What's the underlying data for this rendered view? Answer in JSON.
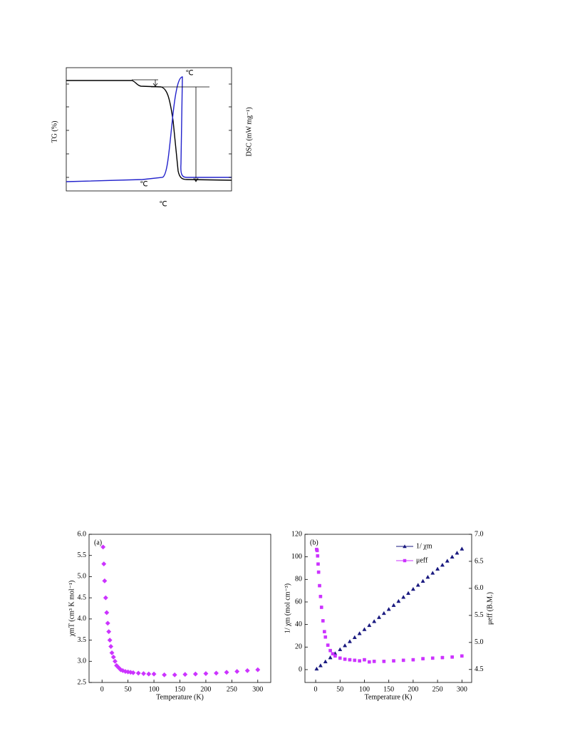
{
  "figure_top": {
    "y_label_left": "TG (%)",
    "y_label_right": "DSC (mW mg⁻¹)",
    "x_label": "℃",
    "peak_label": "℃",
    "onset_label": "℃"
  },
  "chart_data": [
    {
      "type": "scatter",
      "annotation": "(a)",
      "x_label": "Temperature (K)",
      "y_label": "χmT (cm³ K mol⁻¹)",
      "xlim": [
        -25,
        325
      ],
      "xticks": [
        0,
        50,
        100,
        150,
        200,
        250,
        300
      ],
      "ylim": [
        2.5,
        6.0
      ],
      "yticks": [
        2.5,
        {
          "value": 3,
          "label": "3.0"
        },
        3.5,
        {
          "value": 4,
          "label": "4.0"
        },
        4.5,
        {
          "value": 5,
          "label": "5.0"
        },
        5.5,
        {
          "value": 6,
          "label": "6.0"
        }
      ],
      "series": [
        {
          "marker": "diamond",
          "color": "#cc33ff",
          "x": [
            2,
            3.5,
            5,
            7,
            9,
            11,
            13,
            15,
            17,
            19,
            22,
            25,
            28,
            32,
            36,
            40,
            45,
            50,
            55,
            60,
            70,
            80,
            90,
            100,
            120,
            140,
            160,
            180,
            200,
            220,
            240,
            260,
            280,
            300
          ],
          "values": [
            5.7,
            5.3,
            4.9,
            4.5,
            4.15,
            3.9,
            3.7,
            3.5,
            3.35,
            3.2,
            3.1,
            3.0,
            2.9,
            2.85,
            2.8,
            2.78,
            2.76,
            2.75,
            2.74,
            2.73,
            2.72,
            2.71,
            2.7,
            2.7,
            2.68,
            2.68,
            2.69,
            2.7,
            2.71,
            2.72,
            2.74,
            2.76,
            2.78,
            2.8
          ]
        }
      ]
    },
    {
      "type": "scatter",
      "annotation": "(b)",
      "x_label": "Temperature (K)",
      "y_label": "1/ χm (mol cm⁻³)",
      "y2_label": "μeff (B.M.)",
      "xlim": [
        -22,
        320
      ],
      "xticks": [
        0,
        50,
        100,
        150,
        200,
        250,
        300
      ],
      "ylim": [
        -11.4,
        120
      ],
      "yticks": [
        0,
        20,
        40,
        60,
        80,
        100,
        120
      ],
      "y2lim": [
        4.26,
        7.0
      ],
      "y2ticks": [
        4.5,
        {
          "value": 5,
          "label": "5.0"
        },
        5.5,
        {
          "value": 6,
          "label": "6.0"
        },
        6.5,
        {
          "value": 7,
          "label": "7.0"
        }
      ],
      "series": [
        {
          "name": "1/ χm",
          "marker": "triangle",
          "color": "#1a1a80",
          "x": [
            2,
            10,
            20,
            30,
            40,
            50,
            60,
            70,
            80,
            90,
            100,
            110,
            120,
            130,
            140,
            150,
            160,
            170,
            180,
            190,
            200,
            210,
            220,
            230,
            240,
            250,
            260,
            270,
            280,
            290,
            300
          ],
          "values": [
            0.7,
            3.6,
            7.1,
            10.7,
            14.3,
            17.9,
            21.4,
            25.0,
            28.6,
            32.1,
            35.7,
            39.3,
            42.8,
            46.4,
            50.0,
            53.6,
            57.1,
            60.7,
            64.3,
            67.8,
            71.4,
            75.0,
            78.5,
            82.1,
            85.7,
            89.3,
            92.8,
            96.4,
            100.0,
            103.5,
            107.1
          ]
        },
        {
          "name": "μeff",
          "marker": "square",
          "color": "#cc33ff",
          "axis": "y2",
          "x": [
            2,
            3,
            4,
            5,
            6,
            8,
            10,
            12,
            15,
            18,
            20,
            25,
            30,
            35,
            40,
            50,
            60,
            70,
            80,
            90,
            100,
            110,
            120,
            140,
            160,
            180,
            200,
            220,
            240,
            260,
            280,
            300
          ],
          "values": [
            6.72,
            6.7,
            6.6,
            6.45,
            6.3,
            6.05,
            5.85,
            5.65,
            5.4,
            5.2,
            5.1,
            4.95,
            4.85,
            4.79,
            4.75,
            4.71,
            4.69,
            4.68,
            4.67,
            4.66,
            4.68,
            4.64,
            4.65,
            4.65,
            4.66,
            4.67,
            4.68,
            4.7,
            4.71,
            4.72,
            4.73,
            4.75
          ]
        }
      ]
    }
  ]
}
